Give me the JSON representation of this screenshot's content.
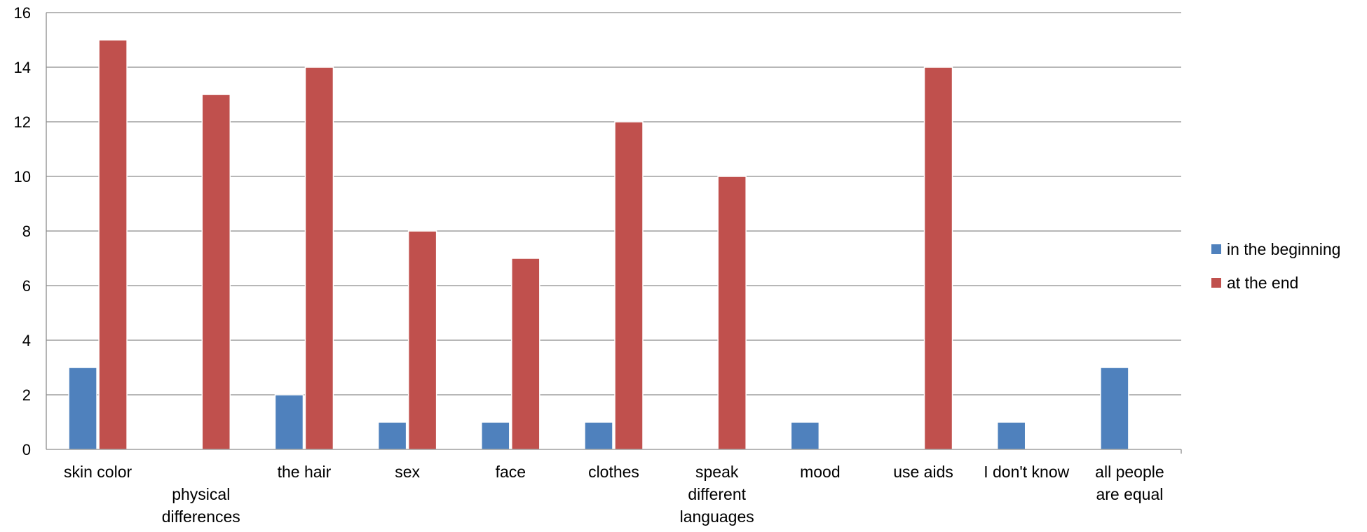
{
  "chart_data": {
    "type": "bar",
    "title": "",
    "xlabel": "",
    "ylabel": "",
    "ylim": [
      0,
      16
    ],
    "yticks": [
      0,
      2,
      4,
      6,
      8,
      10,
      12,
      14,
      16
    ],
    "grid": true,
    "legend_position": "right",
    "categories": [
      [
        "skin color"
      ],
      [
        "",
        "physical",
        "differences"
      ],
      [
        "the hair"
      ],
      [
        "sex"
      ],
      [
        "face"
      ],
      [
        "clothes"
      ],
      [
        "speak",
        "different",
        "languages"
      ],
      [
        "mood"
      ],
      [
        "use aids"
      ],
      [
        "I don't know"
      ],
      [
        "all people",
        "are equal"
      ]
    ],
    "series": [
      {
        "name": "in the beginning",
        "color": "#4F81BD",
        "values": [
          3,
          0,
          2,
          1,
          1,
          1,
          0,
          1,
          0,
          1,
          3
        ]
      },
      {
        "name": "at the end",
        "color": "#C0504D",
        "values": [
          15,
          13,
          14,
          8,
          7,
          12,
          10,
          0,
          14,
          0,
          0
        ]
      }
    ]
  }
}
